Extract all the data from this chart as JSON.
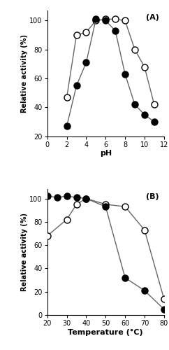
{
  "panel_A": {
    "label": "(A)",
    "open_x": [
      2,
      3,
      4,
      5,
      6,
      7,
      8,
      9,
      10,
      11
    ],
    "open_y": [
      47,
      90,
      92,
      100,
      101,
      101,
      100,
      80,
      68,
      42
    ],
    "closed_x": [
      2,
      3,
      4,
      5,
      6,
      7,
      8,
      9,
      10,
      11
    ],
    "closed_y": [
      27,
      55,
      71,
      101,
      100,
      93,
      63,
      42,
      35,
      30
    ],
    "xlabel": "pH",
    "ylabel": "Relative activity (%)",
    "xlim": [
      0,
      12
    ],
    "ylim": [
      20,
      107
    ],
    "xticks": [
      0,
      2,
      4,
      6,
      8,
      10,
      12
    ],
    "yticks": [
      20,
      40,
      60,
      80,
      100
    ]
  },
  "panel_B": {
    "label": "(B)",
    "open_x": [
      20,
      30,
      35,
      40,
      50,
      60,
      70,
      80
    ],
    "open_y": [
      68,
      82,
      95,
      100,
      95,
      93,
      73,
      14
    ],
    "closed_x": [
      20,
      25,
      30,
      35,
      40,
      50,
      60,
      70,
      80
    ],
    "closed_y": [
      102,
      101,
      102,
      101,
      100,
      93,
      32,
      21,
      5
    ],
    "xlabel": "Temperature (°C)",
    "ylabel": "Relative activity (%)",
    "xlim": [
      20,
      80
    ],
    "ylim": [
      0,
      108
    ],
    "xticks": [
      20,
      30,
      40,
      50,
      60,
      70,
      80
    ],
    "yticks": [
      0,
      20,
      40,
      60,
      80,
      100
    ]
  },
  "line_color": "#666666",
  "markersize": 6.5,
  "linewidth": 1.0,
  "label_fontsize": 8,
  "tick_fontsize": 7,
  "annot_fontsize": 8
}
